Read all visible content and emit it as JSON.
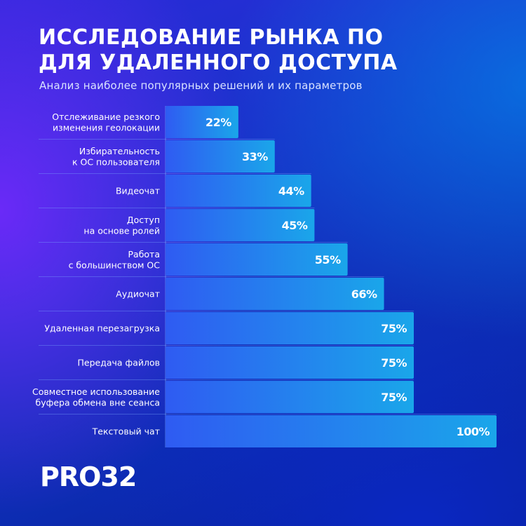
{
  "header": {
    "title_line1": "ИССЛЕДОВАНИЕ РЫНКА ПО",
    "title_line2": "ДЛЯ УДАЛЕННОГО ДОСТУПА",
    "subtitle": "Анализ наиболее популярных решений и их параметров"
  },
  "logo": {
    "text": "PRO32"
  },
  "colors": {
    "bar_left": "#2f5bf2",
    "bar_right": "#1aa6ea",
    "separator": "#7fb0ff",
    "text": "#ffffff"
  },
  "chart_data": {
    "type": "bar",
    "orientation": "horizontal",
    "categories": [
      [
        "Отслеживание резкого",
        "изменения геолокации"
      ],
      [
        "Избирательность",
        "к ОС пользователя"
      ],
      [
        "Видеочат"
      ],
      [
        "Доступ",
        "на основе ролей"
      ],
      [
        "Работа",
        "с большинством ОС"
      ],
      [
        "Аудиочат"
      ],
      [
        "Удаленная перезагрузка"
      ],
      [
        "Передача файлов"
      ],
      [
        "Совместное использование",
        "буфера обмена вне сеанса"
      ],
      [
        "Текстовый чат"
      ]
    ],
    "values": [
      22,
      33,
      44,
      45,
      55,
      66,
      75,
      75,
      75,
      100
    ],
    "value_labels": [
      "22%",
      "33%",
      "44%",
      "45%",
      "55%",
      "66%",
      "75%",
      "75%",
      "75%",
      "100%"
    ],
    "xlim": [
      0,
      100
    ],
    "grid": false,
    "legend": "none"
  }
}
